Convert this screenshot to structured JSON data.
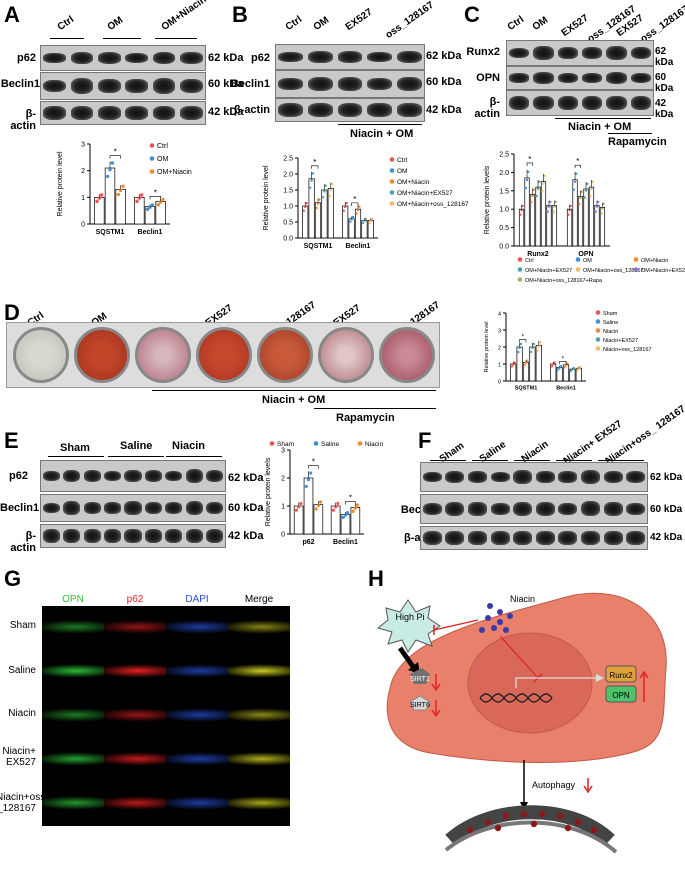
{
  "panels": {
    "A": "A",
    "B": "B",
    "C": "C",
    "D": "D",
    "E": "E",
    "F": "F",
    "G": "G",
    "H": "H"
  },
  "common": {
    "p62": "p62",
    "beclin1": "Beclin1",
    "bactin": "β-actin",
    "runx2": "Runx2",
    "opn": "OPN",
    "kda62": "62 kDa",
    "kda60": "60 kDa",
    "kda42": "42 kDa",
    "niacin_om": "Niacin + OM",
    "rapamycin": "Rapamycin",
    "ylabel": "Relative protein levels",
    "ylabel2": "Relative protein level"
  },
  "A": {
    "lanes": [
      "Ctrl",
      "OM",
      "OM+Niacin"
    ]
  },
  "B": {
    "lanes": [
      "Ctrl",
      "OM",
      "EX527",
      "oss_128167"
    ]
  },
  "C": {
    "lanes": [
      "Ctrl",
      "OM",
      "EX527",
      "oss_128167",
      "EX527",
      "oss_128167"
    ]
  },
  "D": {
    "lanes": [
      "Ctrl",
      "OM",
      "",
      "EX527",
      "oss_128167",
      "EX527",
      "oss_128167"
    ]
  },
  "E": {
    "groups": [
      "Sham",
      "Saline",
      "Niacin"
    ]
  },
  "F": {
    "lanes": [
      "Sham",
      "Saline",
      "Niacin",
      "Niacin+ EX527",
      "Niacin+oss_ 128167"
    ]
  },
  "G": {
    "cols": [
      "OPN",
      "p62",
      "DAPI",
      "Merge"
    ],
    "rows": [
      "Sham",
      "Saline",
      "Niacin",
      "Niacin+ EX527",
      "Niacin+oss _128167"
    ]
  },
  "H": {
    "high_pi": "High Pi",
    "niacin": "Niacin",
    "sirt1": "SIRT1",
    "sirt6": "SIRT6",
    "runx2": "Runx2",
    "opn": "OPN",
    "autophagy": "Autophagy"
  },
  "colors": {
    "red": "#e8574f",
    "blue": "#3f8fd6",
    "orange": "#f08a2c",
    "teal": "#4aa4a8",
    "peach": "#f2b86b",
    "purple": "#8f74d6",
    "olive": "#a9b06a",
    "cell": "#e9806c",
    "nucleus": "#d9685a",
    "runx2box": "#e0a23a",
    "opnbox": "#4dc26a"
  },
  "chart_data": [
    {
      "type": "bar",
      "panel": "A",
      "categories": [
        "SQSTM1",
        "Beclin1"
      ],
      "series": [
        {
          "name": "Ctrl",
          "values": [
            1.0,
            1.0
          ]
        },
        {
          "name": "OM",
          "values": [
            2.1,
            0.65
          ]
        },
        {
          "name": "OM+Niacin",
          "values": [
            1.3,
            0.85
          ]
        }
      ],
      "ylabel": "Relative protein level",
      "ylim": [
        0,
        3
      ],
      "yticks": [
        "0",
        "1",
        "2",
        "3"
      ],
      "sig": "*"
    },
    {
      "type": "bar",
      "panel": "B",
      "categories": [
        "SQSTM1",
        "Beclin1"
      ],
      "series": [
        {
          "name": "Ctrl",
          "values": [
            1.0,
            1.0
          ]
        },
        {
          "name": "OM",
          "values": [
            1.85,
            0.6
          ]
        },
        {
          "name": "OM+Niacin",
          "values": [
            1.1,
            0.9
          ]
        },
        {
          "name": "OM+Niacin+EX527",
          "values": [
            1.5,
            0.55
          ]
        },
        {
          "name": "OM+Niacin+oss_128167",
          "values": [
            1.55,
            0.55
          ]
        }
      ],
      "ylabel": "Relative protein level",
      "ylim": [
        0,
        2.5
      ],
      "yticks": [
        "0.0",
        "0.5",
        "1.0",
        "1.5",
        "2.0",
        "2.5"
      ],
      "sig": "*"
    },
    {
      "type": "bar",
      "panel": "C",
      "categories": [
        "Runx2",
        "OPN"
      ],
      "series": [
        {
          "name": "Ctrl",
          "values": [
            1.0,
            1.0
          ]
        },
        {
          "name": "OM",
          "values": [
            1.85,
            1.8
          ]
        },
        {
          "name": "OM+Niacin",
          "values": [
            1.4,
            1.35
          ]
        },
        {
          "name": "OM+Niacin+EX527",
          "values": [
            1.6,
            1.55
          ]
        },
        {
          "name": "OM+Niacin+oss_128167",
          "values": [
            1.75,
            1.6
          ]
        },
        {
          "name": "OM+Niacin+EX527+Rapa",
          "values": [
            1.1,
            1.1
          ]
        },
        {
          "name": "OM+Niacin+oss_128167+Rapa",
          "values": [
            1.1,
            1.05
          ]
        }
      ],
      "ylabel": "Relative protein levels",
      "ylim": [
        0,
        2.5
      ],
      "yticks": [
        "0.0",
        "0.5",
        "1.0",
        "1.5",
        "2.0",
        "2.5"
      ],
      "sig": "*"
    },
    {
      "type": "bar",
      "panel": "D",
      "categories": [
        "SQSTM1",
        "Beclin1"
      ],
      "series": [
        {
          "name": "Sham",
          "values": [
            1.0,
            1.0
          ]
        },
        {
          "name": "Saline",
          "values": [
            2.0,
            0.8
          ]
        },
        {
          "name": "Niacin",
          "values": [
            1.1,
            0.95
          ]
        },
        {
          "name": "Niacin+EX527",
          "values": [
            2.0,
            0.7
          ]
        },
        {
          "name": "Niacin+oss_128167",
          "values": [
            2.1,
            0.75
          ]
        }
      ],
      "ylabel": "Relative protein level",
      "ylim": [
        0,
        4
      ],
      "yticks": [
        "0",
        "1",
        "2",
        "3",
        "4"
      ],
      "sig": "*"
    },
    {
      "type": "bar",
      "panel": "E",
      "categories": [
        "p62",
        "Beclin1"
      ],
      "series": [
        {
          "name": "Sham",
          "values": [
            1.0,
            1.0
          ]
        },
        {
          "name": "Saline",
          "values": [
            2.0,
            0.7
          ]
        },
        {
          "name": "Niacin",
          "values": [
            1.05,
            0.95
          ]
        }
      ],
      "ylabel": "Relative protein levels",
      "ylim": [
        0,
        3
      ],
      "yticks": [
        "0",
        "1",
        "2",
        "3"
      ],
      "sig": "*"
    }
  ]
}
